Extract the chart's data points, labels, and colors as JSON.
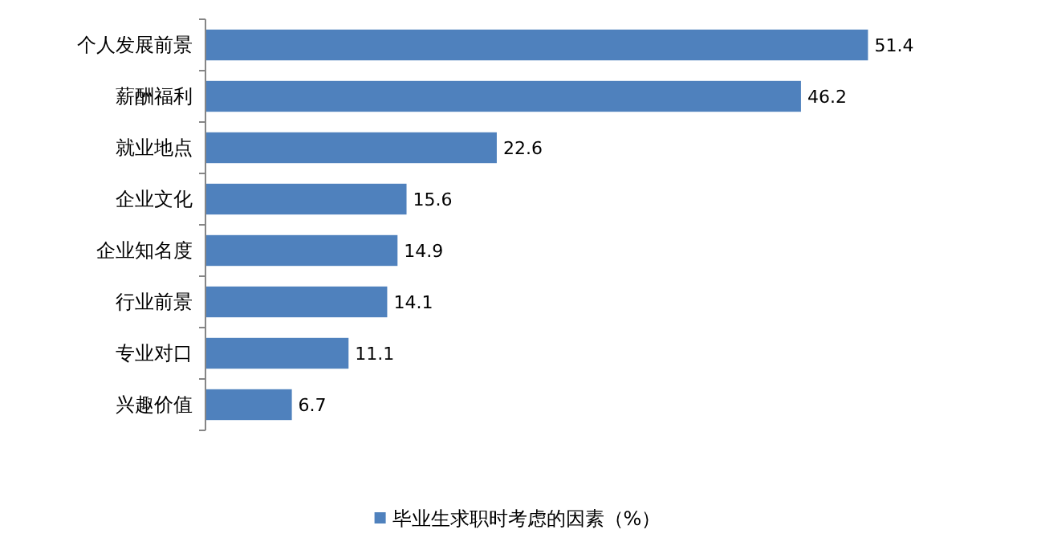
{
  "chart_data": {
    "type": "bar",
    "orientation": "horizontal",
    "categories": [
      "个人发展前景",
      "薪酬福利",
      "就业地点",
      "企业文化",
      "企业知名度",
      "行业前景",
      "专业对口",
      "兴趣价值"
    ],
    "series": [
      {
        "name": "毕业生求职时考虑的因素（%）",
        "color": "#4f81bd",
        "values": [
          51.4,
          46.2,
          22.6,
          15.6,
          14.9,
          14.1,
          11.1,
          6.7
        ]
      }
    ],
    "data_labels": true,
    "legend": "bottom",
    "grid": false
  }
}
